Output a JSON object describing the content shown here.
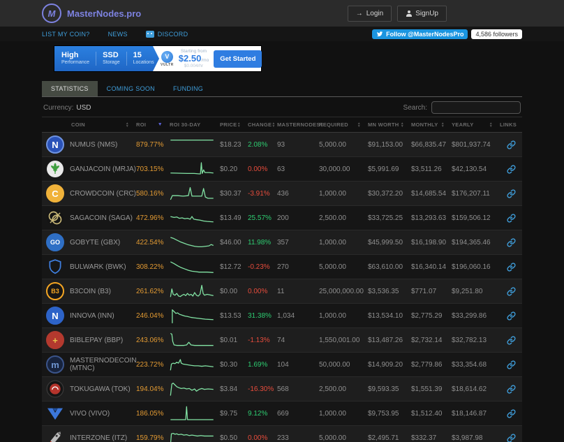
{
  "header": {
    "brand": "MasterNodes.pro",
    "login": "Login",
    "signup": "SignUp"
  },
  "nav": {
    "list_my_coin": "LIST MY COIN?",
    "news": "NEWS",
    "discord": "DISCORD",
    "twitter_follow": "Follow @MasterNodesPro",
    "followers": "4,586 followers"
  },
  "ad": {
    "features": [
      {
        "title": "High",
        "subtitle": "Performance"
      },
      {
        "title": "SSD",
        "subtitle": "Storage"
      },
      {
        "title": "15",
        "subtitle": "Locations"
      }
    ],
    "brand": "VULTR",
    "brand_initial": "V",
    "starting_from": "Starting from",
    "price": "$2.50",
    "price_unit": "/mo",
    "alt_price": "$0.004/hr",
    "cta": "Get Started"
  },
  "tabs": [
    {
      "label": "STATISTICS",
      "active": true
    },
    {
      "label": "COMING SOON",
      "active": false
    },
    {
      "label": "FUNDING",
      "active": false
    }
  ],
  "toolbar": {
    "currency_label": "Currency:",
    "currency_value": "USD",
    "search_label": "Search:",
    "search_value": ""
  },
  "table": {
    "columns": [
      "COIN",
      "ROI",
      "ROI 30-DAY",
      "PRICE",
      "CHANGE",
      "MASTERNODES",
      "REQUIRED",
      "MN WORTH",
      "MONTHLY",
      "YEARLY",
      "LINKS"
    ],
    "sparkline_color": "#82e3a4",
    "rows": [
      {
        "coin": "NUMUS (NMS)",
        "icon": {
          "shape": "circle",
          "bg": "#2a52b8",
          "border": "#6f93e0",
          "fg": "#ffffff",
          "glyph": "N"
        },
        "roi": "879.77%",
        "spark": [
          [
            2,
            7
          ],
          [
            98,
            7
          ]
        ],
        "price": "$18.23",
        "change": "2.08%",
        "direction": "up",
        "masternodes": "93",
        "required": "5,000.00",
        "mn_worth": "$91,153.00",
        "monthly": "$66,835.47",
        "yearly": "$801,937.74"
      },
      {
        "coin": "GANJACOIN (MRJA)",
        "icon": {
          "shape": "leaf",
          "bg": "#e9e9e9",
          "fg": "#3f9e3f"
        },
        "roi": "703.15%",
        "spark": [
          [
            2,
            26
          ],
          [
            40,
            27
          ],
          [
            55,
            27
          ],
          [
            66,
            28
          ],
          [
            69,
            28
          ],
          [
            71,
            3
          ],
          [
            73,
            27
          ],
          [
            76,
            19
          ],
          [
            79,
            25
          ],
          [
            88,
            25
          ],
          [
            98,
            26
          ]
        ],
        "price": "$0.20",
        "change": "0.00%",
        "direction": "down",
        "masternodes": "63",
        "required": "30,000.00",
        "mn_worth": "$5,991.69",
        "monthly": "$3,511.26",
        "yearly": "$42,130.54"
      },
      {
        "coin": "CROWDCOIN (CRC)",
        "icon": {
          "shape": "circle",
          "bg": "#f0b23a",
          "border": "#f0b23a",
          "fg": "#ffffff",
          "glyph": "C"
        },
        "roi": "580.16%",
        "spark": [
          [
            2,
            31
          ],
          [
            6,
            22
          ],
          [
            18,
            22
          ],
          [
            30,
            23
          ],
          [
            42,
            22
          ],
          [
            46,
            4
          ],
          [
            50,
            23
          ],
          [
            58,
            23
          ],
          [
            72,
            23
          ],
          [
            76,
            6
          ],
          [
            80,
            25
          ],
          [
            86,
            28
          ],
          [
            98,
            28
          ]
        ],
        "price": "$30.37",
        "change": "-3.91%",
        "direction": "down",
        "masternodes": "436",
        "required": "1,000.00",
        "mn_worth": "$30,372.20",
        "monthly": "$14,685.54",
        "yearly": "$176,207.11"
      },
      {
        "coin": "SAGACOIN (SAGA)",
        "icon": {
          "shape": "rings",
          "bg": "#141414",
          "fg": "#c9b878"
        },
        "roi": "472.96%",
        "spark": [
          [
            2,
            14
          ],
          [
            10,
            16
          ],
          [
            16,
            15
          ],
          [
            22,
            18
          ],
          [
            28,
            17
          ],
          [
            34,
            19
          ],
          [
            40,
            18
          ],
          [
            46,
            20
          ],
          [
            50,
            14
          ],
          [
            54,
            20
          ],
          [
            60,
            21
          ],
          [
            68,
            22
          ],
          [
            76,
            24
          ],
          [
            84,
            25
          ],
          [
            98,
            26
          ]
        ],
        "price": "$13.49",
        "change": "25.57%",
        "direction": "up",
        "masternodes": "200",
        "required": "2,500.00",
        "mn_worth": "$33,725.25",
        "monthly": "$13,293.63",
        "yearly": "$159,506.12"
      },
      {
        "coin": "GOBYTE (GBX)",
        "icon": {
          "shape": "circle",
          "bg": "#2f6fc5",
          "border": "#2f6fc5",
          "fg": "#ffffff",
          "glyph": "GO"
        },
        "roi": "422.54%",
        "spark": [
          [
            2,
            6
          ],
          [
            8,
            8
          ],
          [
            16,
            12
          ],
          [
            24,
            16
          ],
          [
            32,
            19
          ],
          [
            40,
            22
          ],
          [
            48,
            24
          ],
          [
            56,
            26
          ],
          [
            64,
            27
          ],
          [
            72,
            27
          ],
          [
            80,
            26
          ],
          [
            88,
            25
          ],
          [
            93,
            22
          ],
          [
            98,
            24
          ]
        ],
        "price": "$46.00",
        "change": "11.98%",
        "direction": "up",
        "masternodes": "357",
        "required": "1,000.00",
        "mn_worth": "$45,999.50",
        "monthly": "$16,198.90",
        "yearly": "$194,365.46"
      },
      {
        "coin": "BULWARK (BWK)",
        "icon": {
          "shape": "shield",
          "fg": "#3f7fe0"
        },
        "roi": "308.22%",
        "spark": [
          [
            2,
            6
          ],
          [
            10,
            10
          ],
          [
            18,
            15
          ],
          [
            26,
            19
          ],
          [
            34,
            22
          ],
          [
            42,
            25
          ],
          [
            50,
            27
          ],
          [
            58,
            28
          ],
          [
            66,
            29
          ],
          [
            74,
            29
          ],
          [
            84,
            29
          ],
          [
            98,
            30
          ]
        ],
        "price": "$12.72",
        "change": "-0.23%",
        "direction": "down",
        "masternodes": "270",
        "required": "5,000.00",
        "mn_worth": "$63,610.00",
        "monthly": "$16,340.14",
        "yearly": "$196,060.16"
      },
      {
        "coin": "B3COIN (B3)",
        "icon": {
          "shape": "circle",
          "bg": "#161616",
          "border": "#f5a623",
          "fg": "#f5a623",
          "glyph": "B3"
        },
        "roi": "261.62%",
        "spark": [
          [
            2,
            30
          ],
          [
            5,
            12
          ],
          [
            8,
            24
          ],
          [
            12,
            26
          ],
          [
            16,
            22
          ],
          [
            20,
            28
          ],
          [
            24,
            29
          ],
          [
            28,
            26
          ],
          [
            32,
            24
          ],
          [
            36,
            27
          ],
          [
            40,
            22
          ],
          [
            44,
            26
          ],
          [
            48,
            24
          ],
          [
            52,
            28
          ],
          [
            56,
            20
          ],
          [
            60,
            26
          ],
          [
            64,
            28
          ],
          [
            68,
            24
          ],
          [
            72,
            4
          ],
          [
            75,
            22
          ],
          [
            78,
            26
          ],
          [
            84,
            24
          ],
          [
            98,
            27
          ]
        ],
        "price": "$0.00",
        "change": "0.00%",
        "direction": "down",
        "masternodes": "11",
        "required": "25,000,000.00",
        "mn_worth": "$3,536.35",
        "monthly": "$771.07",
        "yearly": "$9,251.80"
      },
      {
        "coin": "INNOVA (INN)",
        "icon": {
          "shape": "circle",
          "bg": "#2d63c8",
          "border": "#2d63c8",
          "fg": "#ffffff",
          "glyph": "N"
        },
        "roi": "246.04%",
        "spark": [
          [
            6,
            34
          ],
          [
            6,
            4
          ],
          [
            10,
            8
          ],
          [
            14,
            12
          ],
          [
            18,
            11
          ],
          [
            22,
            14
          ],
          [
            28,
            16
          ],
          [
            34,
            18
          ],
          [
            40,
            19
          ],
          [
            48,
            21
          ],
          [
            56,
            22
          ],
          [
            64,
            23
          ],
          [
            72,
            24
          ],
          [
            80,
            25
          ],
          [
            98,
            26
          ]
        ],
        "price": "$13.53",
        "change": "31.38%",
        "direction": "up",
        "masternodes": "1,034",
        "required": "1,000.00",
        "mn_worth": "$13,534.10",
        "monthly": "$2,775.29",
        "yearly": "$33,299.86"
      },
      {
        "coin": "BIBLEPAY (BBP)",
        "icon": {
          "shape": "circle",
          "bg": "#b3392e",
          "border": "#b3392e",
          "fg": "#e7c04a",
          "glyph": "+"
        },
        "roi": "243.06%",
        "spark": [
          [
            2,
            2
          ],
          [
            5,
            4
          ],
          [
            7,
            20
          ],
          [
            10,
            28
          ],
          [
            16,
            29
          ],
          [
            24,
            29
          ],
          [
            32,
            29
          ],
          [
            38,
            28
          ],
          [
            43,
            22
          ],
          [
            48,
            28
          ],
          [
            56,
            29
          ],
          [
            66,
            29
          ],
          [
            76,
            29
          ],
          [
            86,
            29
          ],
          [
            98,
            29
          ]
        ],
        "price": "$0.01",
        "change": "-1.13%",
        "direction": "down",
        "masternodes": "74",
        "required": "1,550,001.00",
        "mn_worth": "$13,487.26",
        "monthly": "$2,732.14",
        "yearly": "$32,782.13"
      },
      {
        "coin": "MASTERNODECOIN (MTNC)",
        "icon": {
          "shape": "circle",
          "bg": "#17233d",
          "border": "#3b548a",
          "fg": "#6f95d0",
          "glyph": "m"
        },
        "roi": "223.72%",
        "spark": [
          [
            2,
            30
          ],
          [
            4,
            16
          ],
          [
            8,
            14
          ],
          [
            12,
            15
          ],
          [
            16,
            12
          ],
          [
            20,
            14
          ],
          [
            24,
            6
          ],
          [
            26,
            14
          ],
          [
            30,
            16
          ],
          [
            36,
            17
          ],
          [
            42,
            18
          ],
          [
            48,
            19
          ],
          [
            56,
            20
          ],
          [
            64,
            20
          ],
          [
            72,
            21
          ],
          [
            80,
            20
          ],
          [
            98,
            22
          ]
        ],
        "price": "$0.30",
        "change": "1.69%",
        "direction": "up",
        "masternodes": "104",
        "required": "50,000.00",
        "mn_worth": "$14,909.20",
        "monthly": "$2,779.86",
        "yearly": "$33,354.68"
      },
      {
        "coin": "TOKUGAWA (TOK)",
        "icon": {
          "shape": "tokugawa",
          "bg": "#151515",
          "fg": "#b5342c"
        },
        "roi": "194.04%",
        "spark": [
          [
            2,
            32
          ],
          [
            5,
            6
          ],
          [
            8,
            4
          ],
          [
            12,
            8
          ],
          [
            16,
            12
          ],
          [
            20,
            14
          ],
          [
            26,
            16
          ],
          [
            32,
            15
          ],
          [
            38,
            17
          ],
          [
            44,
            16
          ],
          [
            50,
            20
          ],
          [
            56,
            17
          ],
          [
            60,
            22
          ],
          [
            66,
            18
          ],
          [
            72,
            16
          ],
          [
            78,
            18
          ],
          [
            86,
            17
          ],
          [
            98,
            18
          ]
        ],
        "price": "$3.84",
        "change": "-16.30%",
        "direction": "down",
        "masternodes": "568",
        "required": "2,500.00",
        "mn_worth": "$9,593.35",
        "monthly": "$1,551.39",
        "yearly": "$18,614.62"
      },
      {
        "coin": "VIVO (VIVO)",
        "icon": {
          "shape": "chevron",
          "fg": "#3b76d9"
        },
        "roi": "186.05%",
        "spark": [
          [
            2,
            31
          ],
          [
            36,
            31
          ],
          [
            38,
            2
          ],
          [
            40,
            31
          ],
          [
            98,
            31
          ]
        ],
        "price": "$9.75",
        "change": "9.12%",
        "direction": "up",
        "masternodes": "669",
        "required": "1,000.00",
        "mn_worth": "$9,753.95",
        "monthly": "$1,512.40",
        "yearly": "$18,146.87"
      },
      {
        "coin": "INTERZONE (ITZ)",
        "icon": {
          "shape": "rocket",
          "fg": "#bbbbbb"
        },
        "roi": "159.79%",
        "spark": [
          [
            2,
            32
          ],
          [
            4,
            8
          ],
          [
            8,
            7
          ],
          [
            12,
            9
          ],
          [
            16,
            8
          ],
          [
            20,
            10
          ],
          [
            26,
            9
          ],
          [
            32,
            11
          ],
          [
            38,
            10
          ],
          [
            44,
            12
          ],
          [
            50,
            11
          ],
          [
            56,
            12
          ],
          [
            62,
            13
          ],
          [
            70,
            12
          ],
          [
            78,
            13
          ],
          [
            98,
            13
          ]
        ],
        "price": "$0.50",
        "change": "0.00%",
        "direction": "down",
        "masternodes": "233",
        "required": "5,000.00",
        "mn_worth": "$2,495.71",
        "monthly": "$332.37",
        "yearly": "$3,987.98"
      }
    ]
  }
}
